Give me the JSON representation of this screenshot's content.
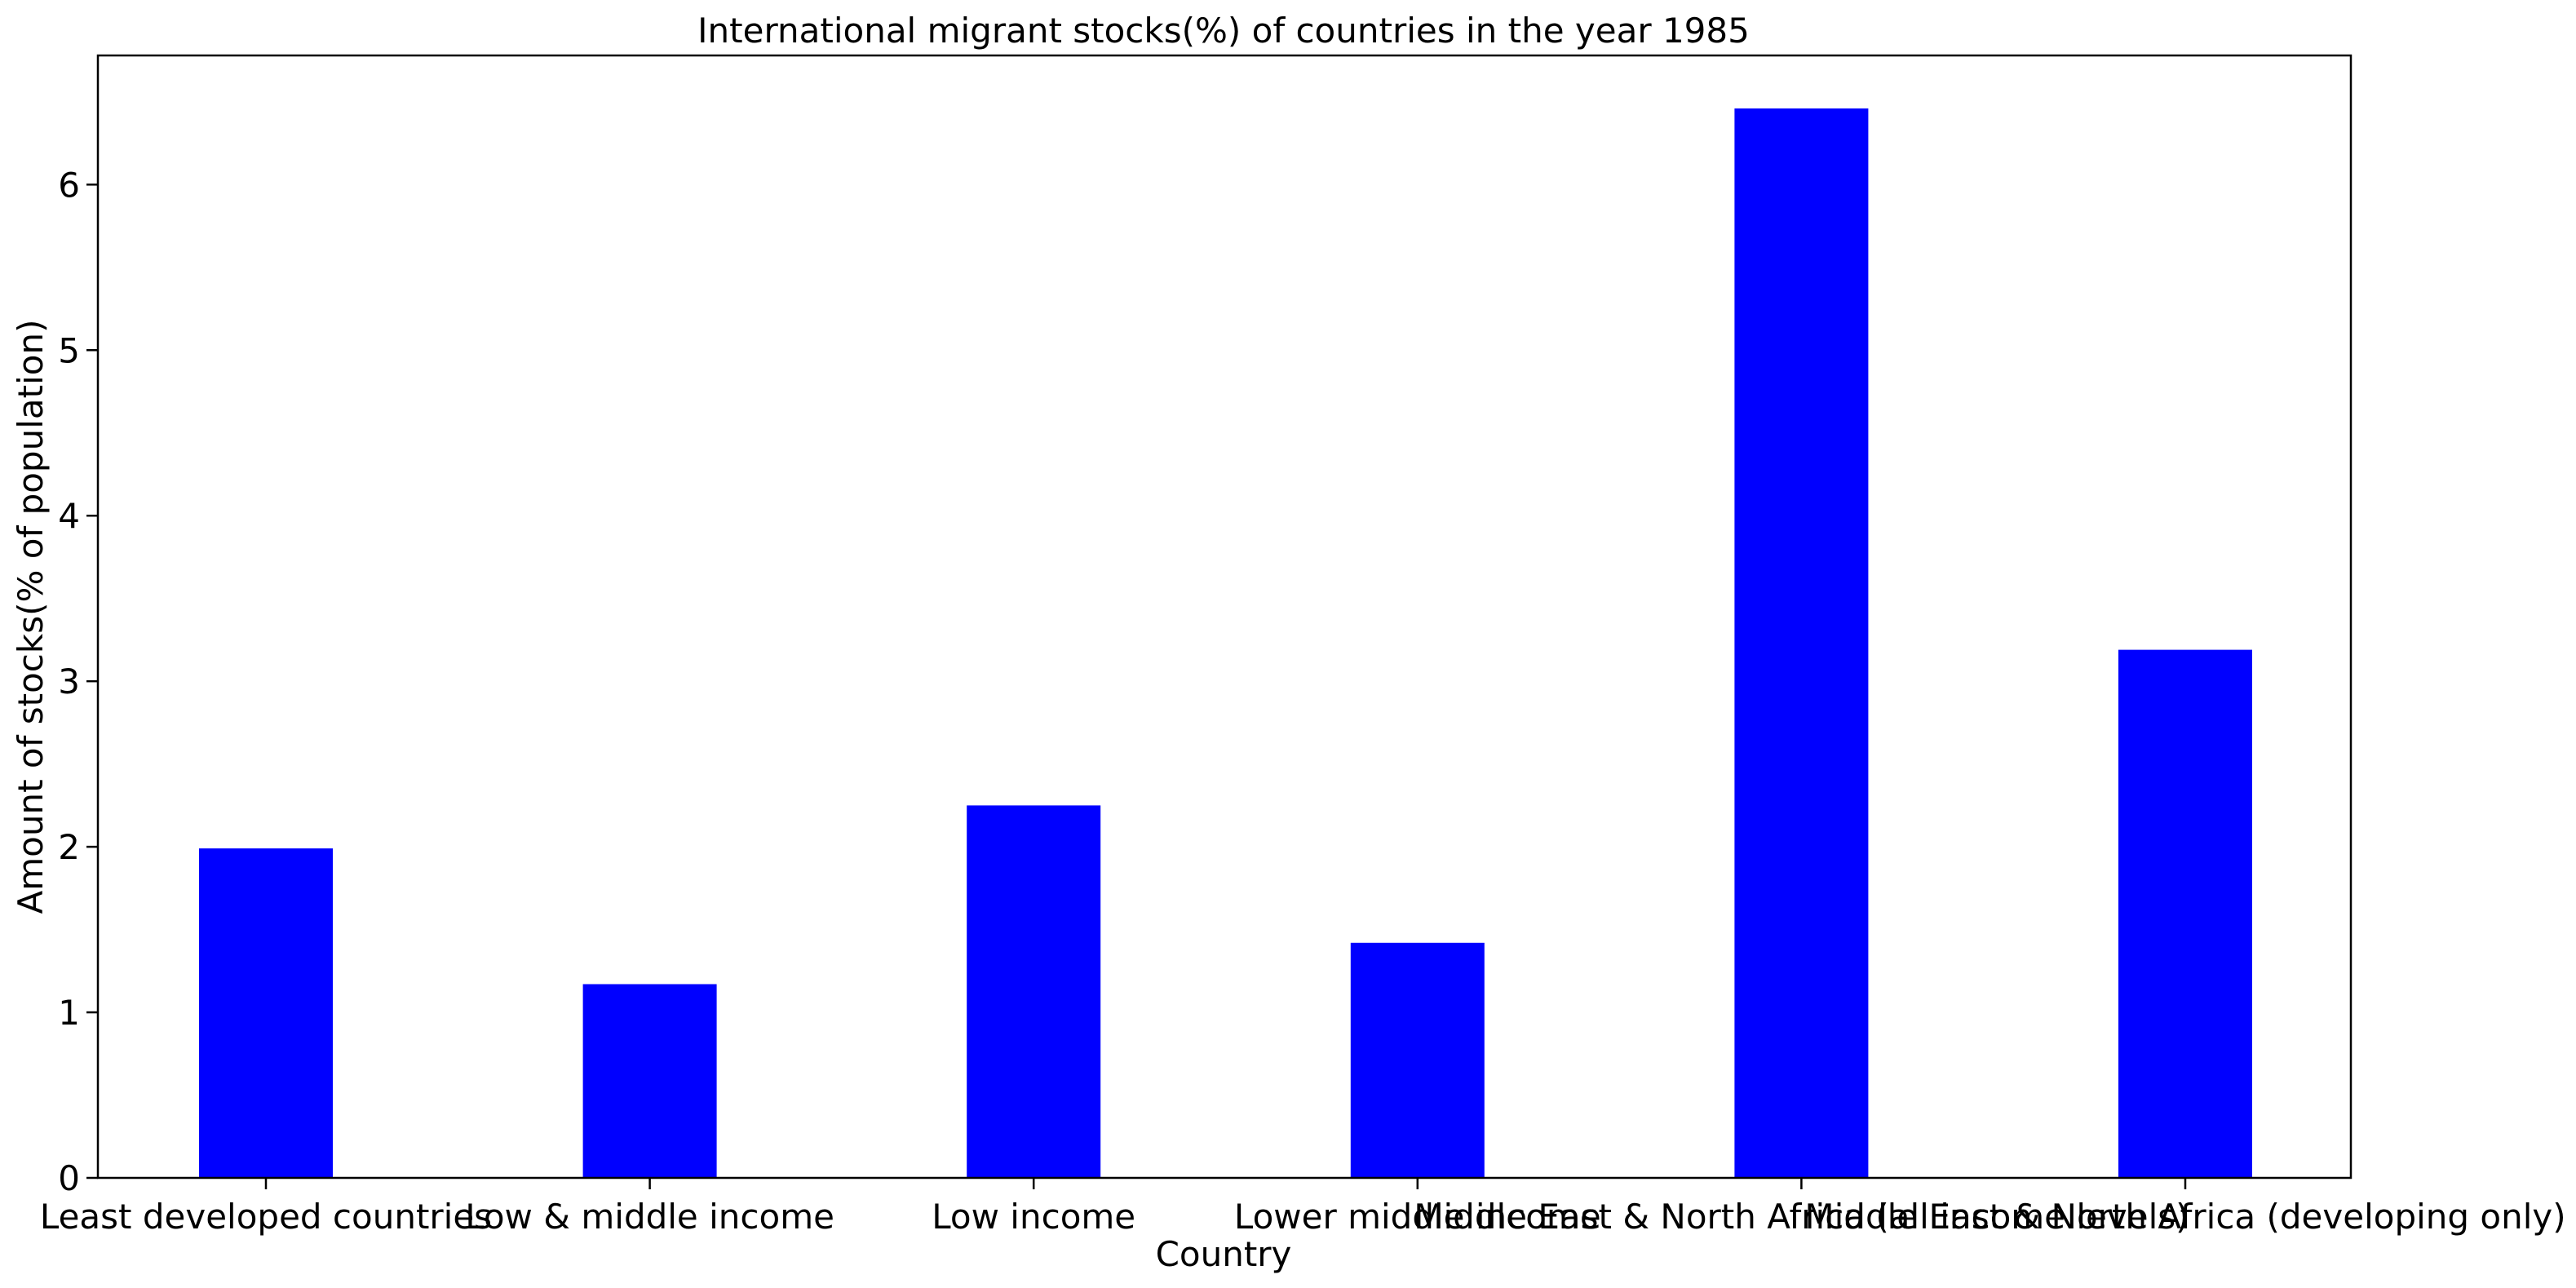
{
  "chart_data": {
    "type": "bar",
    "title": "International migrant stocks(%) of countries in the year 1985",
    "xlabel": "Country",
    "ylabel": "Amount of stocks(% of population)",
    "categories": [
      "Least developed countries",
      "Low & middle income",
      "Low income",
      "Lower middle income",
      "Middle East & North Africa (all income levels)",
      "Middle East & North Africa (developing only)"
    ],
    "values": [
      1.99,
      1.17,
      2.25,
      1.42,
      6.46,
      3.19
    ],
    "ylim": [
      0,
      6.78
    ],
    "yticks": [
      0,
      1,
      2,
      3,
      4,
      5,
      6
    ],
    "bar_color": "#0000ff",
    "grid": false,
    "legend": "none"
  }
}
